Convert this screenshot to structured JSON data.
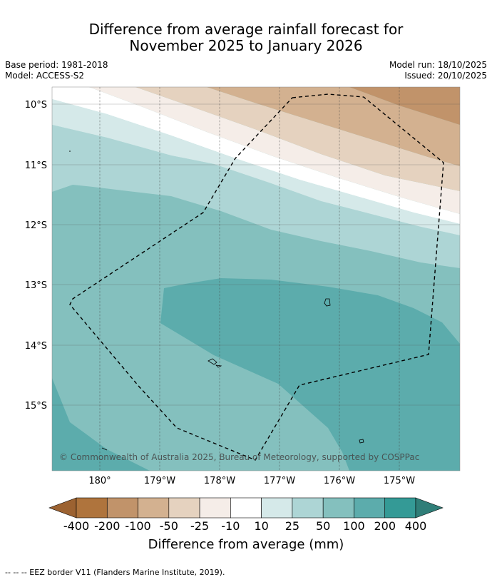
{
  "title_line1": "Difference from average rainfall forecast for",
  "title_line2": "November 2025 to January 2026",
  "meta": {
    "base_period": "Base period: 1981-2018",
    "model": "Model: ACCESS-S2",
    "model_run": "Model run: 18/10/2025",
    "issued": "Issued: 20/10/2025"
  },
  "map": {
    "lat_labels": [
      "10°S",
      "11°S",
      "12°S",
      "13°S",
      "14°S",
      "15°S"
    ],
    "lon_labels": [
      "180°",
      "179°W",
      "178°W",
      "177°W",
      "176°W",
      "175°W"
    ],
    "copyright": "© Commonwealth of Australia 2025, Bureau of Meteorology, supported by COSPPac",
    "eez_label": "EEZ border"
  },
  "colorbar": {
    "label": "Difference from average (mm)",
    "ticks": [
      "-400",
      "-200",
      "-100",
      "-50",
      "-25",
      "-10",
      "10",
      "25",
      "50",
      "100",
      "200",
      "400"
    ],
    "colors": [
      "#9c6231",
      "#af743d",
      "#c1936a",
      "#d3b190",
      "#e5d2bf",
      "#f5ede8",
      "#ffffff",
      "#d5e9e9",
      "#add5d5",
      "#84c0be",
      "#5cacac",
      "#349a96",
      "#2f7e78"
    ]
  },
  "footer": "--  --  -- EEZ border V11 (Flanders Marine Institute, 2019)."
}
